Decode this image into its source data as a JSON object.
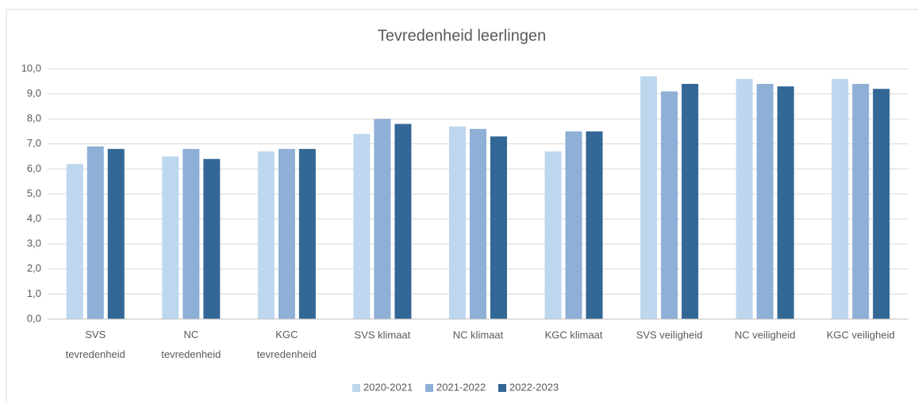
{
  "chart_data": {
    "type": "bar",
    "title": "Tevredenheid leerlingen",
    "categories": [
      "SVS tevredenheid",
      "NC tevredenheid",
      "KGC tevredenheid",
      "SVS klimaat",
      "NC klimaat",
      "KGC klimaat",
      "SVS veiligheid",
      "NC veiligheid",
      "KGC veiligheid"
    ],
    "series": [
      {
        "name": "2020-2021",
        "color": "#bdd7ee",
        "values": [
          6.2,
          6.5,
          6.7,
          7.4,
          7.7,
          6.7,
          9.7,
          9.6,
          9.6
        ]
      },
      {
        "name": "2021-2022",
        "color": "#8eafd6",
        "values": [
          6.9,
          6.8,
          6.8,
          8.0,
          7.6,
          7.5,
          9.1,
          9.4,
          9.4
        ]
      },
      {
        "name": "2022-2023",
        "color": "#336795",
        "values": [
          6.8,
          6.4,
          6.8,
          7.8,
          7.3,
          7.5,
          9.4,
          9.3,
          9.2
        ]
      }
    ],
    "ylim": [
      0,
      10
    ],
    "yticks": [
      {
        "value": 0,
        "label": "0,0"
      },
      {
        "value": 1,
        "label": "1,0"
      },
      {
        "value": 2,
        "label": "2,0"
      },
      {
        "value": 3,
        "label": "3,0"
      },
      {
        "value": 4,
        "label": "4,0"
      },
      {
        "value": 5,
        "label": "5,0"
      },
      {
        "value": 6,
        "label": "6,0"
      },
      {
        "value": 7,
        "label": "7,0"
      },
      {
        "value": 8,
        "label": "8,0"
      },
      {
        "value": 9,
        "label": "9,0"
      },
      {
        "value": 10,
        "label": "10,0"
      }
    ],
    "grid": true,
    "legend": "bottom"
  }
}
